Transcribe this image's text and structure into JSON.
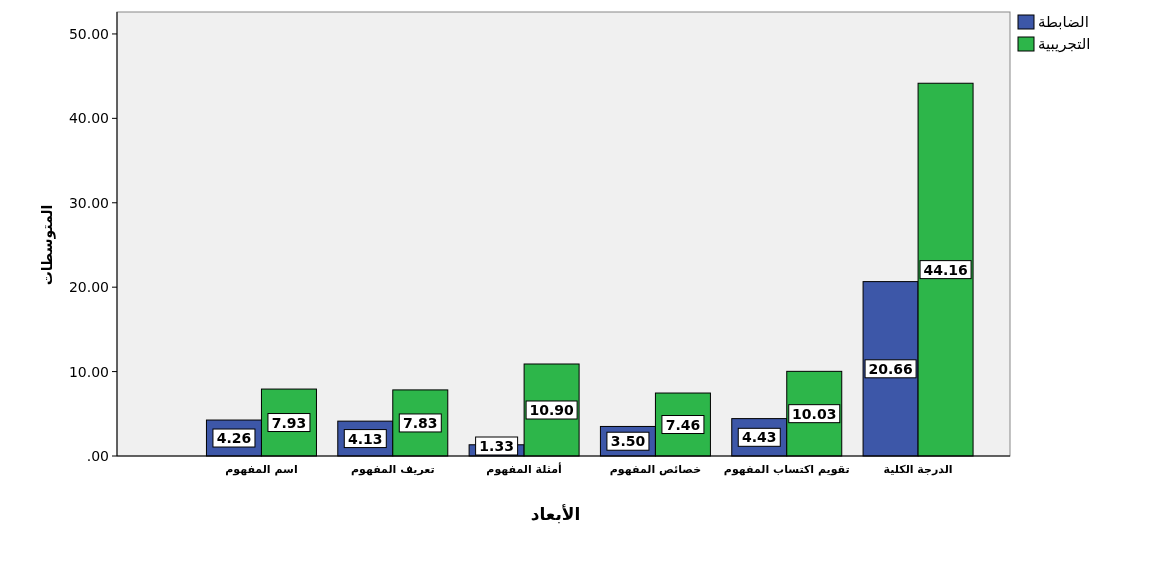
{
  "chart_data": {
    "type": "bar",
    "xlabel": "الأبعاد",
    "ylabel": "المتوسطات",
    "categories": [
      "اسم المفهوم",
      "تعريف المفهوم",
      "أمثلة المفهوم",
      "خصائص المفهوم",
      "تقويم اكتساب المفهوم",
      "الدرجة الكلية"
    ],
    "series": [
      {
        "name": "الضابطة",
        "color": "#3d57a8",
        "values": [
          4.26,
          4.13,
          1.33,
          3.5,
          4.43,
          20.66
        ],
        "value_labels": [
          "4.26",
          "4.13",
          "1.33",
          "3.50",
          "4.43",
          "20.66"
        ]
      },
      {
        "name": "التجريبية",
        "color": "#2db64a",
        "values": [
          7.93,
          7.83,
          10.9,
          7.46,
          10.03,
          44.16
        ],
        "value_labels": [
          "7.93",
          "7.83",
          "10.90",
          "7.46",
          "10.03",
          "44.16"
        ]
      }
    ],
    "ylim": [
      0,
      52.6
    ],
    "yticks": [
      {
        "value": 0,
        "label": ".00"
      },
      {
        "value": 10,
        "label": "10.00"
      },
      {
        "value": 20,
        "label": "20.00"
      },
      {
        "value": 30,
        "label": "30.00"
      },
      {
        "value": 40,
        "label": "40.00"
      },
      {
        "value": 50,
        "label": "50.00"
      }
    ],
    "legend": "top right",
    "grid": false
  }
}
